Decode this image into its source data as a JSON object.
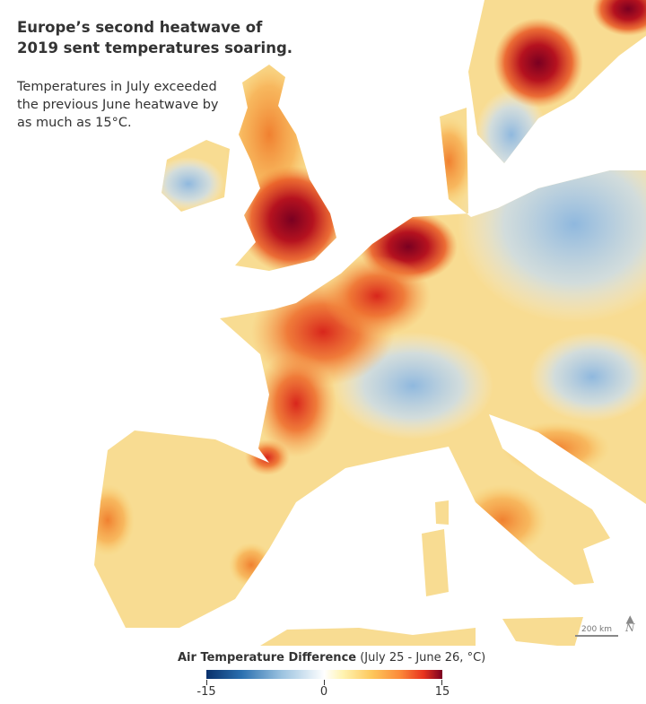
{
  "header": {
    "title": "Europe’s second heatwave of 2019 sent temperatures soaring.",
    "subtitle": "Temperatures in July exceeded the previous June heatwave by as much as 15°C."
  },
  "legend": {
    "title_bold": "Air Temperature Difference",
    "title_rest": "(July 25 - June 26, °C)",
    "ticks": [
      "-15",
      "0",
      "15"
    ],
    "colors": [
      "#08306b",
      "#2b70b0",
      "#9cc3e0",
      "#ffffff",
      "#fff3b0",
      "#fdc85c",
      "#fc8a3a",
      "#e8331e",
      "#7a0021"
    ]
  },
  "scale": {
    "label": "200 km"
  },
  "north": {
    "label": "N"
  }
}
